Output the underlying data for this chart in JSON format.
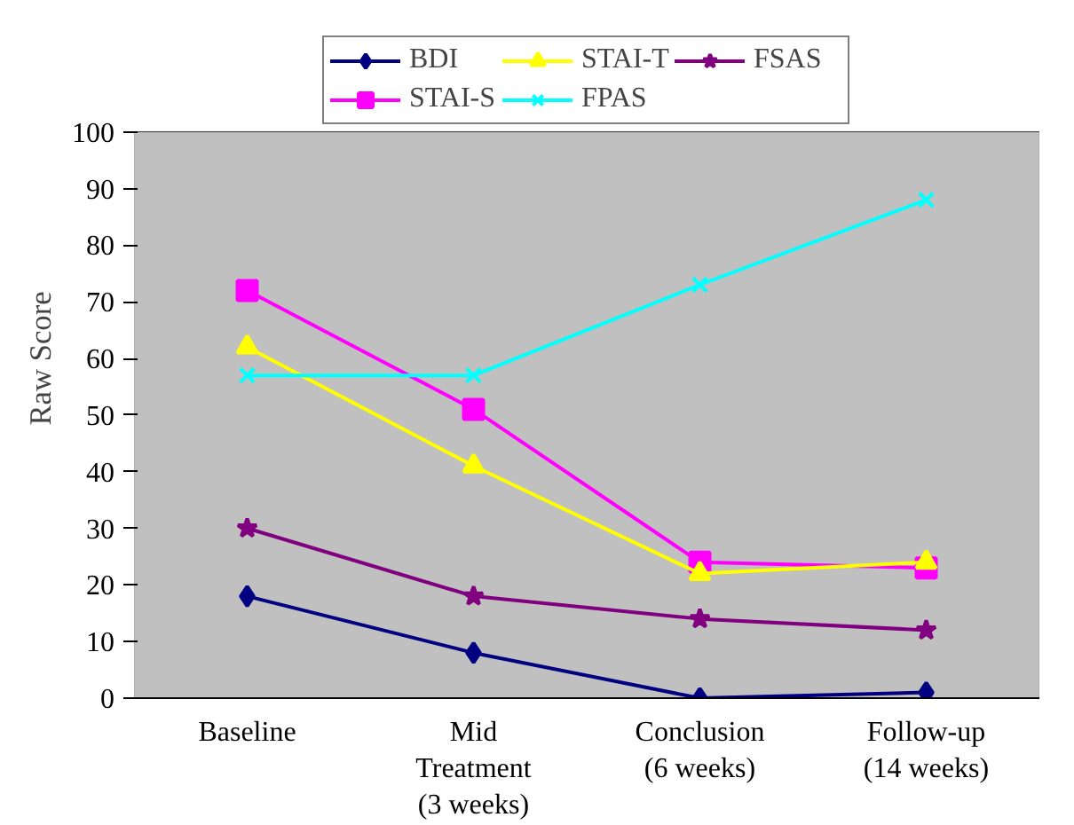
{
  "chart_data": {
    "type": "line",
    "ylabel": "Raw Score",
    "categories": [
      "Baseline",
      "Mid\nTreatment\n(3 weeks)",
      "Conclusion\n(6 weeks)",
      "Follow-up\n(14 weeks)"
    ],
    "series": [
      {
        "name": "BDI",
        "color": "#000080",
        "marker": "diamond",
        "values": [
          18,
          8,
          0,
          1
        ]
      },
      {
        "name": "STAI-S",
        "color": "#ff00ff",
        "marker": "square",
        "values": [
          72,
          51,
          24,
          23
        ]
      },
      {
        "name": "STAI-T",
        "color": "#ffff00",
        "marker": "triangle",
        "values": [
          62,
          41,
          22,
          24
        ]
      },
      {
        "name": "FPAS",
        "color": "#00ffff",
        "marker": "cross",
        "values": [
          57,
          57,
          73,
          88
        ]
      },
      {
        "name": "FSAS",
        "color": "#800080",
        "marker": "star",
        "values": [
          30,
          18,
          14,
          12
        ]
      }
    ],
    "ylim": [
      0,
      100
    ],
    "yticks": [
      0,
      10,
      20,
      30,
      40,
      50,
      60,
      70,
      80,
      90,
      100
    ],
    "grid": "y",
    "legend": "top",
    "line_style": "solid"
  }
}
